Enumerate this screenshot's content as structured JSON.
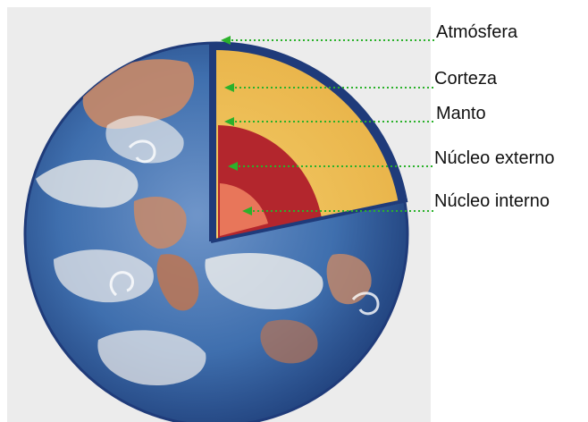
{
  "labels": {
    "atmosphere": "Atmósfera",
    "crust": "Corteza",
    "mantle": "Manto",
    "outer_core": "Núcleo externo",
    "inner_core": "Núcleo interno"
  },
  "colors": {
    "background_panel": "#ececec",
    "ocean_blue": "#3f6fae",
    "deep_blue": "#1f3f7a",
    "land_brown": "#c98a68",
    "cloud_white": "#f3f1ee",
    "crust_outline": "#1f3b7a",
    "mantle_yellow": "#f0c45a",
    "outer_core_red": "#b3262d",
    "inner_core_orange": "#e8765a",
    "pointer_green": "#2bb12b"
  }
}
